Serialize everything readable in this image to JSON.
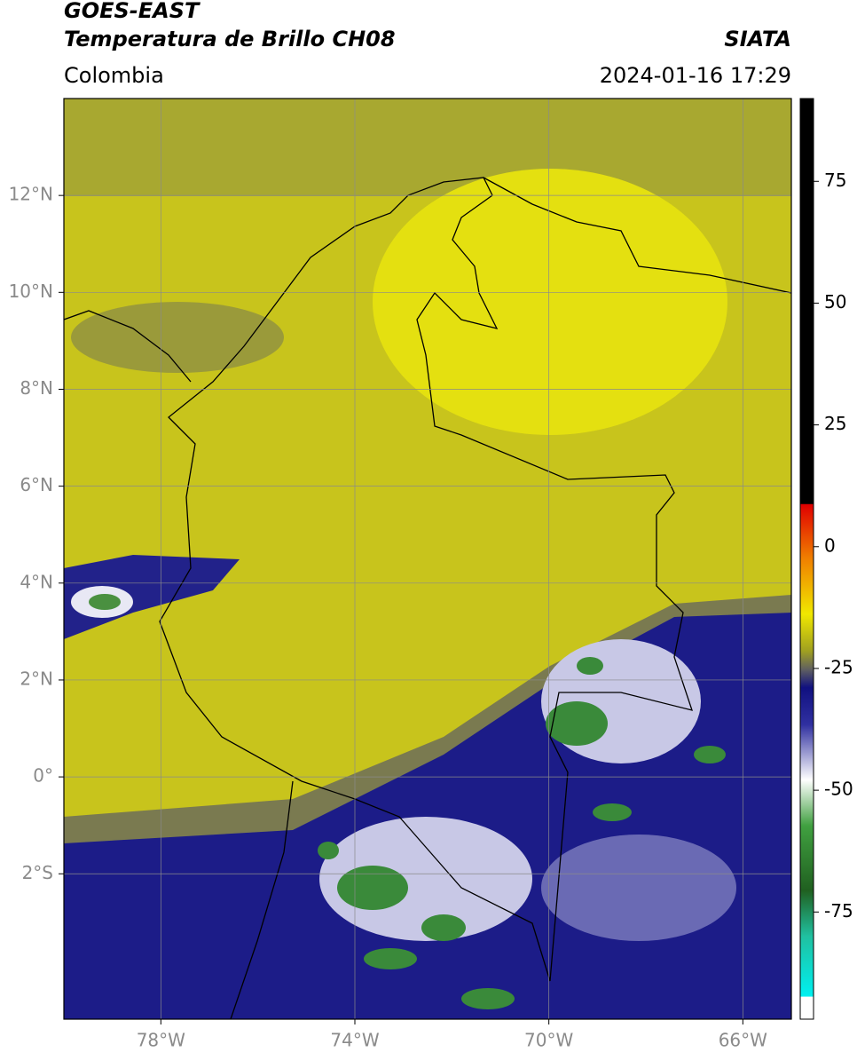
{
  "header": {
    "title_line1": "GOES-EAST",
    "title_line2": "Temperatura de Brillo CH08",
    "source": "SIATA",
    "region": "Colombia",
    "datetime": "2024-01-16 17:29"
  },
  "map": {
    "xlim": [
      -80,
      -65
    ],
    "ylim": [
      -5,
      14
    ],
    "xticks": [
      {
        "value": -78,
        "label": "78°W"
      },
      {
        "value": -74,
        "label": "74°W"
      },
      {
        "value": -70,
        "label": "70°W"
      },
      {
        "value": -66,
        "label": "66°W"
      }
    ],
    "yticks": [
      {
        "value": 12,
        "label": "12°N"
      },
      {
        "value": 10,
        "label": "10°N"
      },
      {
        "value": 8,
        "label": "8°N"
      },
      {
        "value": 6,
        "label": "6°N"
      },
      {
        "value": 4,
        "label": "4°N"
      },
      {
        "value": 2,
        "label": "2°N"
      },
      {
        "value": 0,
        "label": "0°"
      },
      {
        "value": -2,
        "label": "2°S"
      }
    ],
    "grid": true
  },
  "colorbar": {
    "lim": [
      -97,
      92
    ],
    "ticks": [
      75,
      50,
      25,
      0,
      -25,
      -50,
      -75
    ]
  }
}
